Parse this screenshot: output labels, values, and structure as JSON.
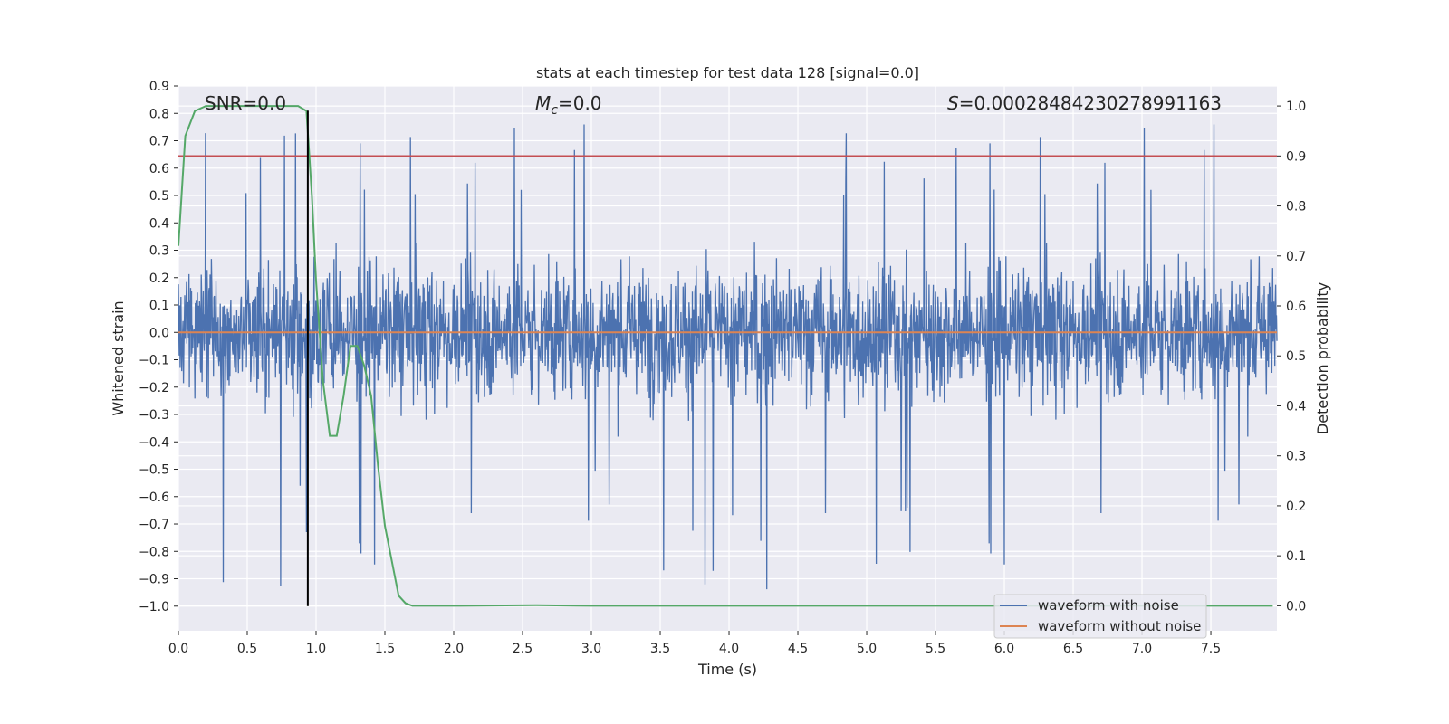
{
  "chart_data": {
    "type": "line",
    "title": "stats at each timestep for test data 128 [signal=0.0]",
    "xlabel": "Time (s)",
    "ylabel": "Whitened strain",
    "ylabel_right": "Detection probability",
    "xlim": [
      0.0,
      7.98
    ],
    "ylim": [
      -1.09,
      0.9
    ],
    "ylim_right": [
      -0.05,
      1.04
    ],
    "x_ticks": [
      "0.0",
      "0.5",
      "1.0",
      "1.5",
      "2.0",
      "2.5",
      "3.0",
      "3.5",
      "4.0",
      "4.5",
      "5.0",
      "5.5",
      "6.0",
      "6.5",
      "7.0",
      "7.5"
    ],
    "y_ticks": [
      "0.9",
      "0.8",
      "0.7",
      "0.6",
      "0.5",
      "0.4",
      "0.3",
      "0.2",
      "0.1",
      "0.0",
      "−0.1",
      "−0.2",
      "−0.3",
      "−0.4",
      "−0.5",
      "−0.6",
      "−0.7",
      "−0.8",
      "−0.9",
      "−1.0"
    ],
    "y_ticks_right": [
      "1.0",
      "0.9",
      "0.8",
      "0.7",
      "0.6",
      "0.5",
      "0.4",
      "0.3",
      "0.2",
      "0.1",
      "0.0"
    ],
    "grid": true,
    "legend_position": "lower-right",
    "annotations": {
      "snr": "SNR=0.0",
      "mc_symbol": "M",
      "mc_sub": "c",
      "mc_value": "=0.0",
      "s_symbol": "S",
      "s_value": "=0.00028484230278991163"
    },
    "threshold_line": {
      "axis": "right",
      "value": 0.9,
      "color": "#c44e52"
    },
    "marker_line": {
      "x": 0.94,
      "y_from": -1.0,
      "y_to": 0.81,
      "color": "#000000"
    },
    "series": [
      {
        "name": "waveform with noise",
        "color": "#4c72b0",
        "axis": "left",
        "style": "dense noise trace, core band about -0.28 to 0.27 with spikes up to 0.81 and down to -1.0"
      },
      {
        "name": "waveform without noise",
        "color": "#dd8452",
        "axis": "left",
        "x": [
          0.0,
          7.98
        ],
        "y": [
          0.0,
          0.0
        ]
      },
      {
        "color": "#55a868",
        "axis": "right",
        "x": [
          0.0,
          0.05,
          0.12,
          0.2,
          0.3,
          0.5,
          0.7,
          0.87,
          0.93,
          0.97,
          1.0,
          1.05,
          1.1,
          1.15,
          1.2,
          1.25,
          1.3,
          1.35,
          1.4,
          1.45,
          1.5,
          1.55,
          1.6,
          1.65,
          1.7,
          2.0,
          2.6,
          3.0,
          5.0,
          7.95
        ],
        "y": [
          0.72,
          0.94,
          0.99,
          1.0,
          1.0,
          1.0,
          1.0,
          1.0,
          0.99,
          0.82,
          0.65,
          0.45,
          0.34,
          0.34,
          0.42,
          0.52,
          0.52,
          0.48,
          0.42,
          0.28,
          0.16,
          0.09,
          0.02,
          0.005,
          0.0,
          0.0,
          0.001,
          0.0,
          0.0,
          0.0
        ]
      }
    ]
  }
}
